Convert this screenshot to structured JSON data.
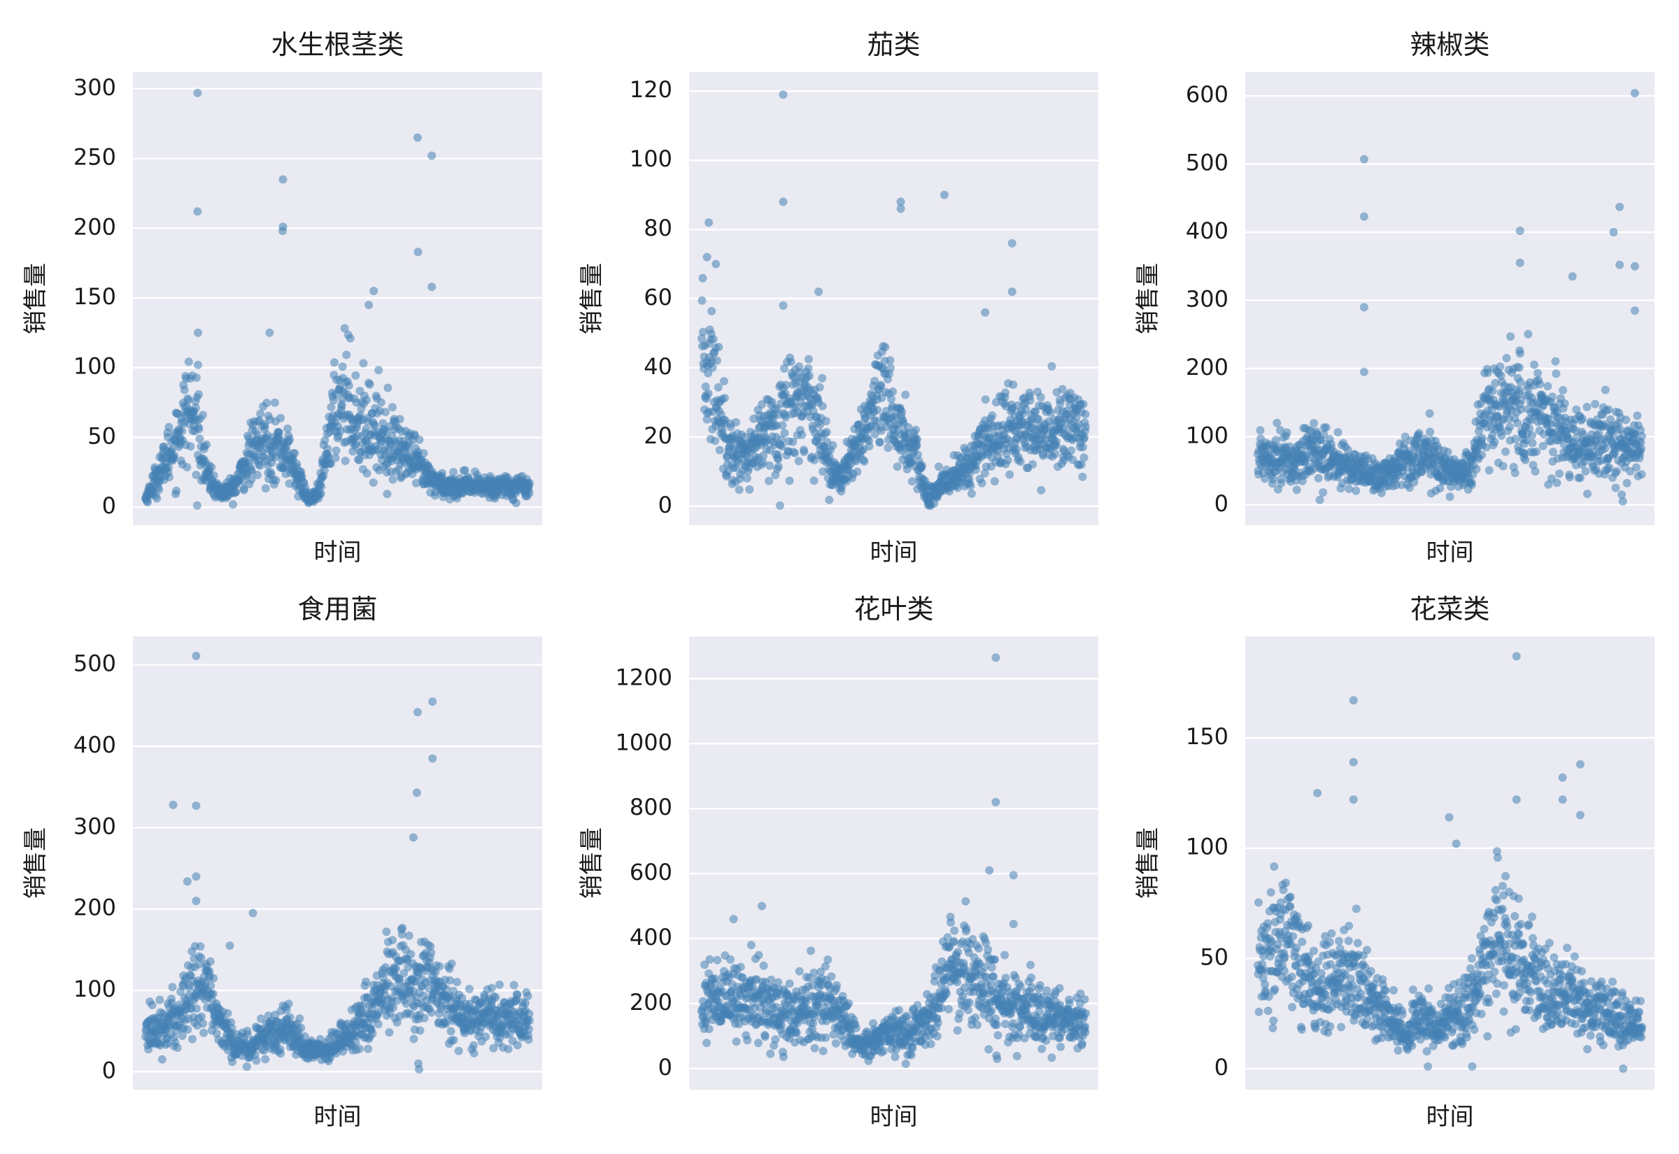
{
  "colors": {
    "point": "#4682b4",
    "plot_background": "#eaeaf2",
    "grid": "#ffffff"
  },
  "chart_data": [
    {
      "type": "scatter",
      "title": "水生根茎类",
      "xlabel": "时间",
      "ylabel": "销售量",
      "ylim": [
        -13,
        312
      ],
      "yticks": [
        0,
        50,
        100,
        150,
        200,
        250,
        300
      ],
      "grid": "y",
      "n_points": 1085,
      "segments": [
        {
          "x": 0,
          "y": 6
        },
        {
          "x": 40,
          "y": 25
        },
        {
          "x": 90,
          "y": 50
        },
        {
          "x": 120,
          "y": 72
        },
        {
          "x": 150,
          "y": 55
        },
        {
          "x": 175,
          "y": 22
        },
        {
          "x": 210,
          "y": 10
        },
        {
          "x": 250,
          "y": 14
        },
        {
          "x": 290,
          "y": 35
        },
        {
          "x": 330,
          "y": 48
        },
        {
          "x": 370,
          "y": 45
        },
        {
          "x": 400,
          "y": 38
        },
        {
          "x": 430,
          "y": 22
        },
        {
          "x": 460,
          "y": 5
        },
        {
          "x": 490,
          "y": 10
        },
        {
          "x": 520,
          "y": 55
        },
        {
          "x": 560,
          "y": 85
        },
        {
          "x": 600,
          "y": 60
        },
        {
          "x": 650,
          "y": 55
        },
        {
          "x": 700,
          "y": 45
        },
        {
          "x": 750,
          "y": 35
        },
        {
          "x": 800,
          "y": 20
        },
        {
          "x": 850,
          "y": 15
        },
        {
          "x": 1084,
          "y": 15
        }
      ],
      "outliers": [
        {
          "x": 147,
          "y": 297
        },
        {
          "x": 147,
          "y": 212
        },
        {
          "x": 148,
          "y": 125
        },
        {
          "x": 148,
          "y": 102
        },
        {
          "x": 388,
          "y": 235
        },
        {
          "x": 388,
          "y": 201
        },
        {
          "x": 387,
          "y": 198
        },
        {
          "x": 350,
          "y": 125
        },
        {
          "x": 768,
          "y": 265
        },
        {
          "x": 769,
          "y": 183
        },
        {
          "x": 808,
          "y": 252
        },
        {
          "x": 808,
          "y": 158
        },
        {
          "x": 644,
          "y": 155
        },
        {
          "x": 630,
          "y": 145
        }
      ]
    },
    {
      "type": "scatter",
      "title": "茄类",
      "xlabel": "时间",
      "ylabel": "销售量",
      "ylim": [
        -5.5,
        125.5
      ],
      "yticks": [
        0,
        20,
        40,
        60,
        80,
        100,
        120
      ],
      "grid": "y",
      "n_points": 1085,
      "segments": [
        {
          "x": 0,
          "y": 40
        },
        {
          "x": 30,
          "y": 38
        },
        {
          "x": 60,
          "y": 25
        },
        {
          "x": 90,
          "y": 15
        },
        {
          "x": 140,
          "y": 15
        },
        {
          "x": 190,
          "y": 22
        },
        {
          "x": 240,
          "y": 28
        },
        {
          "x": 300,
          "y": 32
        },
        {
          "x": 340,
          "y": 20
        },
        {
          "x": 380,
          "y": 8
        },
        {
          "x": 420,
          "y": 12
        },
        {
          "x": 470,
          "y": 25
        },
        {
          "x": 520,
          "y": 30
        },
        {
          "x": 560,
          "y": 22
        },
        {
          "x": 600,
          "y": 15
        },
        {
          "x": 640,
          "y": 2
        },
        {
          "x": 700,
          "y": 8
        },
        {
          "x": 760,
          "y": 12
        },
        {
          "x": 800,
          "y": 18
        },
        {
          "x": 850,
          "y": 22
        },
        {
          "x": 1084,
          "y": 22
        }
      ],
      "outliers": [
        {
          "x": 20,
          "y": 82
        },
        {
          "x": 15,
          "y": 72
        },
        {
          "x": 40,
          "y": 70
        },
        {
          "x": 230,
          "y": 119
        },
        {
          "x": 230,
          "y": 88
        },
        {
          "x": 230,
          "y": 58
        },
        {
          "x": 562,
          "y": 88
        },
        {
          "x": 562,
          "y": 86
        },
        {
          "x": 685,
          "y": 90
        },
        {
          "x": 876,
          "y": 76
        },
        {
          "x": 876,
          "y": 62
        },
        {
          "x": 800,
          "y": 56
        },
        {
          "x": 330,
          "y": 62
        }
      ]
    },
    {
      "type": "scatter",
      "title": "辣椒类",
      "xlabel": "时间",
      "ylabel": "销售量",
      "ylim": [
        -30,
        635
      ],
      "yticks": [
        0,
        100,
        200,
        300,
        400,
        500,
        600
      ],
      "grid": "y",
      "n_points": 1085,
      "segments": [
        {
          "x": 0,
          "y": 70
        },
        {
          "x": 50,
          "y": 75
        },
        {
          "x": 100,
          "y": 60
        },
        {
          "x": 150,
          "y": 80
        },
        {
          "x": 200,
          "y": 70
        },
        {
          "x": 250,
          "y": 55
        },
        {
          "x": 300,
          "y": 50
        },
        {
          "x": 350,
          "y": 40
        },
        {
          "x": 400,
          "y": 60
        },
        {
          "x": 450,
          "y": 75
        },
        {
          "x": 500,
          "y": 65
        },
        {
          "x": 550,
          "y": 45
        },
        {
          "x": 600,
          "y": 55
        },
        {
          "x": 640,
          "y": 130
        },
        {
          "x": 700,
          "y": 150
        },
        {
          "x": 750,
          "y": 130
        },
        {
          "x": 800,
          "y": 140
        },
        {
          "x": 850,
          "y": 110
        },
        {
          "x": 900,
          "y": 90
        },
        {
          "x": 1084,
          "y": 85
        }
      ],
      "outliers": [
        {
          "x": 300,
          "y": 507
        },
        {
          "x": 300,
          "y": 423
        },
        {
          "x": 300,
          "y": 290
        },
        {
          "x": 300,
          "y": 195
        },
        {
          "x": 740,
          "y": 402
        },
        {
          "x": 740,
          "y": 355
        },
        {
          "x": 740,
          "y": 222
        },
        {
          "x": 740,
          "y": 168
        },
        {
          "x": 888,
          "y": 335
        },
        {
          "x": 1004,
          "y": 400
        },
        {
          "x": 1021,
          "y": 437
        },
        {
          "x": 1021,
          "y": 352
        },
        {
          "x": 1064,
          "y": 604
        },
        {
          "x": 1064,
          "y": 350
        },
        {
          "x": 1064,
          "y": 285
        },
        {
          "x": 1027,
          "y": 15
        },
        {
          "x": 1030,
          "y": 5
        }
      ]
    },
    {
      "type": "scatter",
      "title": "食用菌",
      "xlabel": "时间",
      "ylabel": "销售量",
      "ylim": [
        -22,
        535
      ],
      "yticks": [
        0,
        100,
        200,
        300,
        400,
        500
      ],
      "grid": "y",
      "n_points": 1085,
      "segments": [
        {
          "x": 0,
          "y": 50
        },
        {
          "x": 60,
          "y": 55
        },
        {
          "x": 100,
          "y": 75
        },
        {
          "x": 140,
          "y": 110
        },
        {
          "x": 180,
          "y": 95
        },
        {
          "x": 210,
          "y": 55
        },
        {
          "x": 250,
          "y": 35
        },
        {
          "x": 300,
          "y": 30
        },
        {
          "x": 350,
          "y": 50
        },
        {
          "x": 400,
          "y": 55
        },
        {
          "x": 450,
          "y": 30
        },
        {
          "x": 500,
          "y": 25
        },
        {
          "x": 560,
          "y": 40
        },
        {
          "x": 620,
          "y": 70
        },
        {
          "x": 680,
          "y": 100
        },
        {
          "x": 740,
          "y": 110
        },
        {
          "x": 800,
          "y": 100
        },
        {
          "x": 850,
          "y": 85
        },
        {
          "x": 900,
          "y": 70
        },
        {
          "x": 1084,
          "y": 60
        }
      ],
      "outliers": [
        {
          "x": 143,
          "y": 511
        },
        {
          "x": 143,
          "y": 327
        },
        {
          "x": 143,
          "y": 240
        },
        {
          "x": 143,
          "y": 210
        },
        {
          "x": 78,
          "y": 328
        },
        {
          "x": 118,
          "y": 234
        },
        {
          "x": 303,
          "y": 195
        },
        {
          "x": 238,
          "y": 155
        },
        {
          "x": 768,
          "y": 442
        },
        {
          "x": 810,
          "y": 455
        },
        {
          "x": 810,
          "y": 385
        },
        {
          "x": 766,
          "y": 343
        },
        {
          "x": 756,
          "y": 288
        },
        {
          "x": 770,
          "y": 10
        },
        {
          "x": 772,
          "y": 3
        }
      ]
    },
    {
      "type": "scatter",
      "title": "花叶类",
      "xlabel": "时间",
      "ylabel": "销售量",
      "ylim": [
        -65,
        1330
      ],
      "yticks": [
        0,
        200,
        400,
        600,
        800,
        1000,
        1200
      ],
      "grid": "y",
      "n_points": 1085,
      "segments": [
        {
          "x": 0,
          "y": 200
        },
        {
          "x": 50,
          "y": 230
        },
        {
          "x": 100,
          "y": 200
        },
        {
          "x": 150,
          "y": 220
        },
        {
          "x": 200,
          "y": 180
        },
        {
          "x": 250,
          "y": 160
        },
        {
          "x": 300,
          "y": 180
        },
        {
          "x": 350,
          "y": 220
        },
        {
          "x": 400,
          "y": 150
        },
        {
          "x": 450,
          "y": 70
        },
        {
          "x": 500,
          "y": 100
        },
        {
          "x": 550,
          "y": 120
        },
        {
          "x": 600,
          "y": 110
        },
        {
          "x": 650,
          "y": 160
        },
        {
          "x": 700,
          "y": 320
        },
        {
          "x": 760,
          "y": 300
        },
        {
          "x": 820,
          "y": 230
        },
        {
          "x": 900,
          "y": 180
        },
        {
          "x": 1000,
          "y": 150
        },
        {
          "x": 1084,
          "y": 140
        }
      ],
      "outliers": [
        {
          "x": 830,
          "y": 1265
        },
        {
          "x": 830,
          "y": 820
        },
        {
          "x": 812,
          "y": 610
        },
        {
          "x": 880,
          "y": 595
        },
        {
          "x": 880,
          "y": 445
        },
        {
          "x": 170,
          "y": 500
        },
        {
          "x": 90,
          "y": 460
        },
        {
          "x": 832,
          "y": 40
        },
        {
          "x": 834,
          "y": 30
        }
      ]
    },
    {
      "type": "scatter",
      "title": "花菜类",
      "xlabel": "时间",
      "ylabel": "销售量",
      "ylim": [
        -9.5,
        196
      ],
      "yticks": [
        0,
        50,
        100,
        150
      ],
      "grid": "y",
      "n_points": 1085,
      "segments": [
        {
          "x": 0,
          "y": 45
        },
        {
          "x": 40,
          "y": 55
        },
        {
          "x": 80,
          "y": 60
        },
        {
          "x": 120,
          "y": 48
        },
        {
          "x": 160,
          "y": 40
        },
        {
          "x": 200,
          "y": 38
        },
        {
          "x": 260,
          "y": 42
        },
        {
          "x": 320,
          "y": 30
        },
        {
          "x": 380,
          "y": 22
        },
        {
          "x": 420,
          "y": 15
        },
        {
          "x": 460,
          "y": 25
        },
        {
          "x": 500,
          "y": 18
        },
        {
          "x": 560,
          "y": 25
        },
        {
          "x": 620,
          "y": 35
        },
        {
          "x": 680,
          "y": 60
        },
        {
          "x": 720,
          "y": 50
        },
        {
          "x": 780,
          "y": 40
        },
        {
          "x": 840,
          "y": 35
        },
        {
          "x": 900,
          "y": 30
        },
        {
          "x": 1084,
          "y": 18
        }
      ],
      "outliers": [
        {
          "x": 270,
          "y": 167
        },
        {
          "x": 270,
          "y": 139
        },
        {
          "x": 270,
          "y": 122
        },
        {
          "x": 168,
          "y": 125
        },
        {
          "x": 730,
          "y": 187
        },
        {
          "x": 730,
          "y": 122
        },
        {
          "x": 860,
          "y": 132
        },
        {
          "x": 860,
          "y": 122
        },
        {
          "x": 910,
          "y": 138
        },
        {
          "x": 910,
          "y": 115
        },
        {
          "x": 540,
          "y": 114
        },
        {
          "x": 560,
          "y": 102
        },
        {
          "x": 480,
          "y": 1
        },
        {
          "x": 605,
          "y": 1
        }
      ]
    }
  ]
}
